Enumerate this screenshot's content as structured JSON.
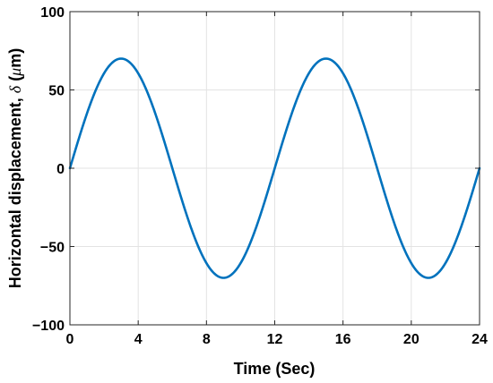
{
  "chart_data": {
    "type": "line",
    "title": "",
    "xlabel": "Time (Sec)",
    "ylabel_parts": {
      "prefix": "Horizontal displacement, ",
      "symbol": "δ",
      "open": " (",
      "unit_symbol": "μ",
      "unit_rest": "m)"
    },
    "xlim": [
      0,
      24
    ],
    "ylim": [
      -100,
      100
    ],
    "xticks": [
      0,
      4,
      8,
      12,
      16,
      20,
      24
    ],
    "xtick_labels": [
      "0",
      "4",
      "8",
      "12",
      "16",
      "20",
      "24"
    ],
    "yticks": [
      -100,
      -50,
      0,
      50,
      100
    ],
    "ytick_labels": [
      "−100",
      "−50",
      "0",
      "50",
      "100"
    ],
    "grid": true,
    "series": [
      {
        "color": "#0072BD",
        "x": [
          0,
          1,
          2,
          3,
          4,
          5,
          6,
          7,
          8,
          9,
          10,
          11,
          12,
          13,
          14,
          15,
          16,
          17,
          18,
          19,
          20,
          21,
          22,
          23,
          24
        ],
        "y": [
          0,
          35,
          60.6,
          70,
          60.6,
          35,
          0,
          -35,
          -60.6,
          -70,
          -60.6,
          -35,
          0,
          35,
          60.6,
          70,
          60.6,
          35,
          0,
          -35,
          -60.6,
          -70,
          -60.6,
          -35,
          0
        ],
        "shape": "sinusoid",
        "amplitude": 70,
        "period": 12
      }
    ]
  }
}
